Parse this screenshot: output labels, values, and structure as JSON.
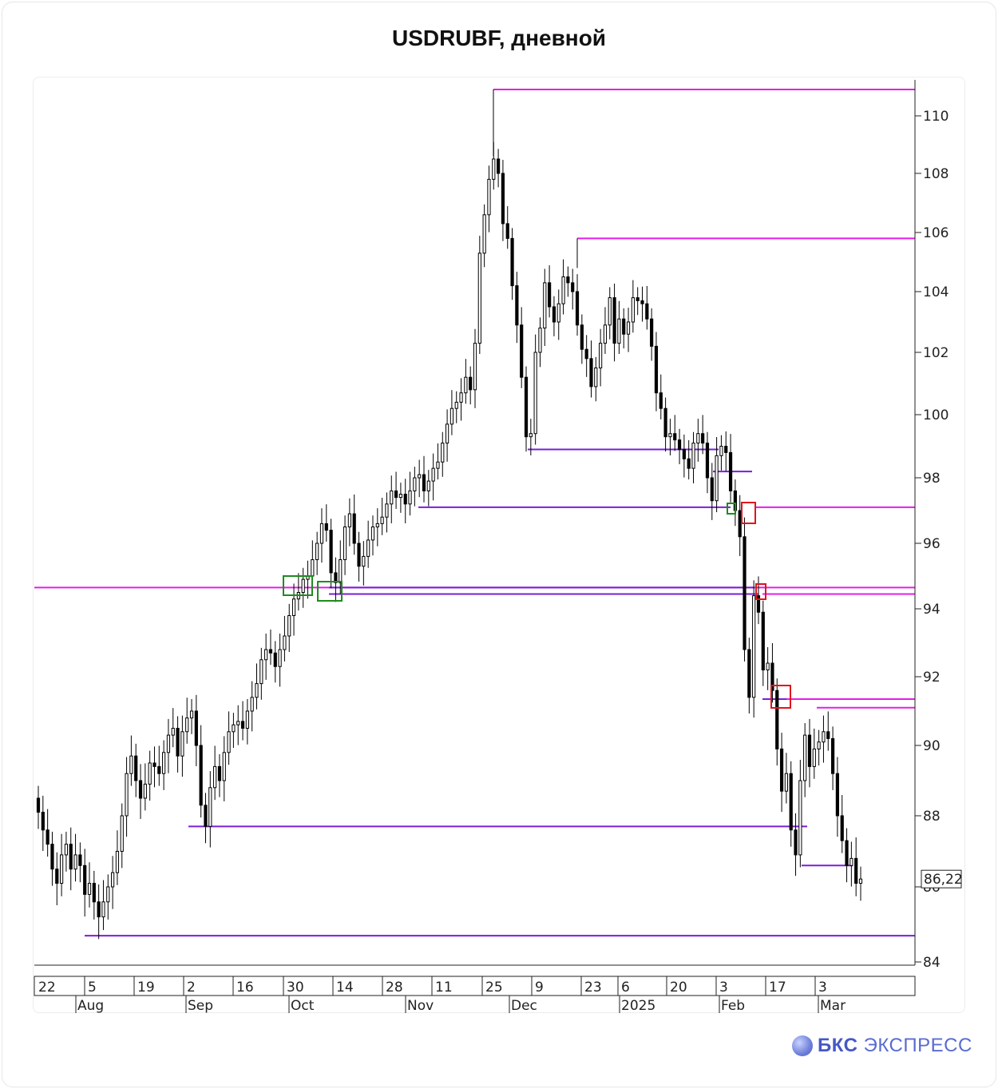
{
  "title": "USDRUBF, дневной",
  "brand": {
    "logo_bold": "БКС",
    "logo_text": "ЭКСПРЕСС"
  },
  "colors": {
    "resistance": "#e31ee8",
    "support": "#7a1fd6",
    "green_box": "#1e8c1e",
    "red_box": "#e0141e",
    "candle": "#000000"
  },
  "chart_data": {
    "type": "candlestick",
    "title": "USDRUBF, дневной",
    "xlabel": "",
    "ylabel": "",
    "ylim": [
      83.7,
      111.2
    ],
    "last_price_label": "86,22",
    "y_ticks": [
      84,
      86,
      88,
      90,
      92,
      94,
      96,
      98,
      100,
      102,
      104,
      106,
      108,
      110
    ],
    "x_day_labels": [
      "22",
      "5",
      "19",
      "2",
      "16",
      "30",
      "14",
      "28",
      "11",
      "25",
      "9",
      "23",
      "6",
      "20",
      "3",
      "17",
      "3"
    ],
    "x_month_labels": [
      "Aug",
      "Sep",
      "Oct",
      "Nov",
      "Dec",
      "2025",
      "Feb",
      "Mar"
    ],
    "grid": false,
    "ohlc_daily_close": [
      88.1,
      87.6,
      87.2,
      86.5,
      86.1,
      86.9,
      87.2,
      86.5,
      86.9,
      86.6,
      85.8,
      86.1,
      85.6,
      85.2,
      85.6,
      86.0,
      86.4,
      87.0,
      88.0,
      89.2,
      89.7,
      89.0,
      88.5,
      88.9,
      89.5,
      89.4,
      89.2,
      89.8,
      90.3,
      90.5,
      89.7,
      90.4,
      90.8,
      91.0,
      90.0,
      88.3,
      87.7,
      88.8,
      89.4,
      89.0,
      89.8,
      90.4,
      90.6,
      90.7,
      90.5,
      91.0,
      91.4,
      91.8,
      92.5,
      92.8,
      92.7,
      92.3,
      92.8,
      93.2,
      93.8,
      94.3,
      94.5,
      94.9,
      95.0,
      95.5,
      96.0,
      96.6,
      96.4,
      95.1,
      94.8,
      95.5,
      96.5,
      96.9,
      96.0,
      95.3,
      95.6,
      96.1,
      96.5,
      96.6,
      96.8,
      97.2,
      97.6,
      97.4,
      97.5,
      97.2,
      97.6,
      98.0,
      98.1,
      97.6,
      97.9,
      98.3,
      98.5,
      99.1,
      99.7,
      100.2,
      100.4,
      100.7,
      101.2,
      100.8,
      102.3,
      105.3,
      106.6,
      107.8,
      108.5,
      108.0,
      106.3,
      105.8,
      104.2,
      102.9,
      101.2,
      99.3,
      99.4,
      102.0,
      102.8,
      104.3,
      103.5,
      103.0,
      103.6,
      104.5,
      104.3,
      104.0,
      102.9,
      102.1,
      101.8,
      100.9,
      101.5,
      102.3,
      102.9,
      103.8,
      102.3,
      103.1,
      102.6,
      103.0,
      103.8,
      103.7,
      103.6,
      103.1,
      102.2,
      100.7,
      100.2,
      99.3,
      99.4,
      99.2,
      98.9,
      98.6,
      98.3,
      99.1,
      99.4,
      99.1,
      98.0,
      97.3,
      98.7,
      99.0,
      98.8,
      97.6,
      97.0,
      96.2,
      92.8,
      91.4,
      94.4,
      93.9,
      92.2,
      92.4,
      91.6,
      89.9,
      88.7,
      89.2,
      87.6,
      86.9,
      89.0,
      90.3,
      89.4,
      89.9,
      90.1,
      90.4,
      90.2,
      89.2,
      88.0,
      87.3,
      86.6,
      86.8,
      86.1,
      86.22
    ],
    "horizontal_levels": [
      {
        "price": 110.9,
        "kind": "resistance"
      },
      {
        "price": 105.8,
        "kind": "resistance"
      },
      {
        "price": 98.9,
        "kind": "support"
      },
      {
        "price": 98.2,
        "kind": "support"
      },
      {
        "price": 97.1,
        "kind": "support"
      },
      {
        "price": 97.1,
        "kind": "resistance"
      },
      {
        "price": 94.65,
        "kind": "resistance"
      },
      {
        "price": 94.65,
        "kind": "support"
      },
      {
        "price": 94.45,
        "kind": "support"
      },
      {
        "price": 94.45,
        "kind": "resistance"
      },
      {
        "price": 91.35,
        "kind": "resistance"
      },
      {
        "price": 91.1,
        "kind": "resistance"
      },
      {
        "price": 91.35,
        "kind": "support"
      },
      {
        "price": 87.7,
        "kind": "support"
      },
      {
        "price": 86.6,
        "kind": "support"
      },
      {
        "price": 84.7,
        "kind": "support"
      }
    ]
  }
}
